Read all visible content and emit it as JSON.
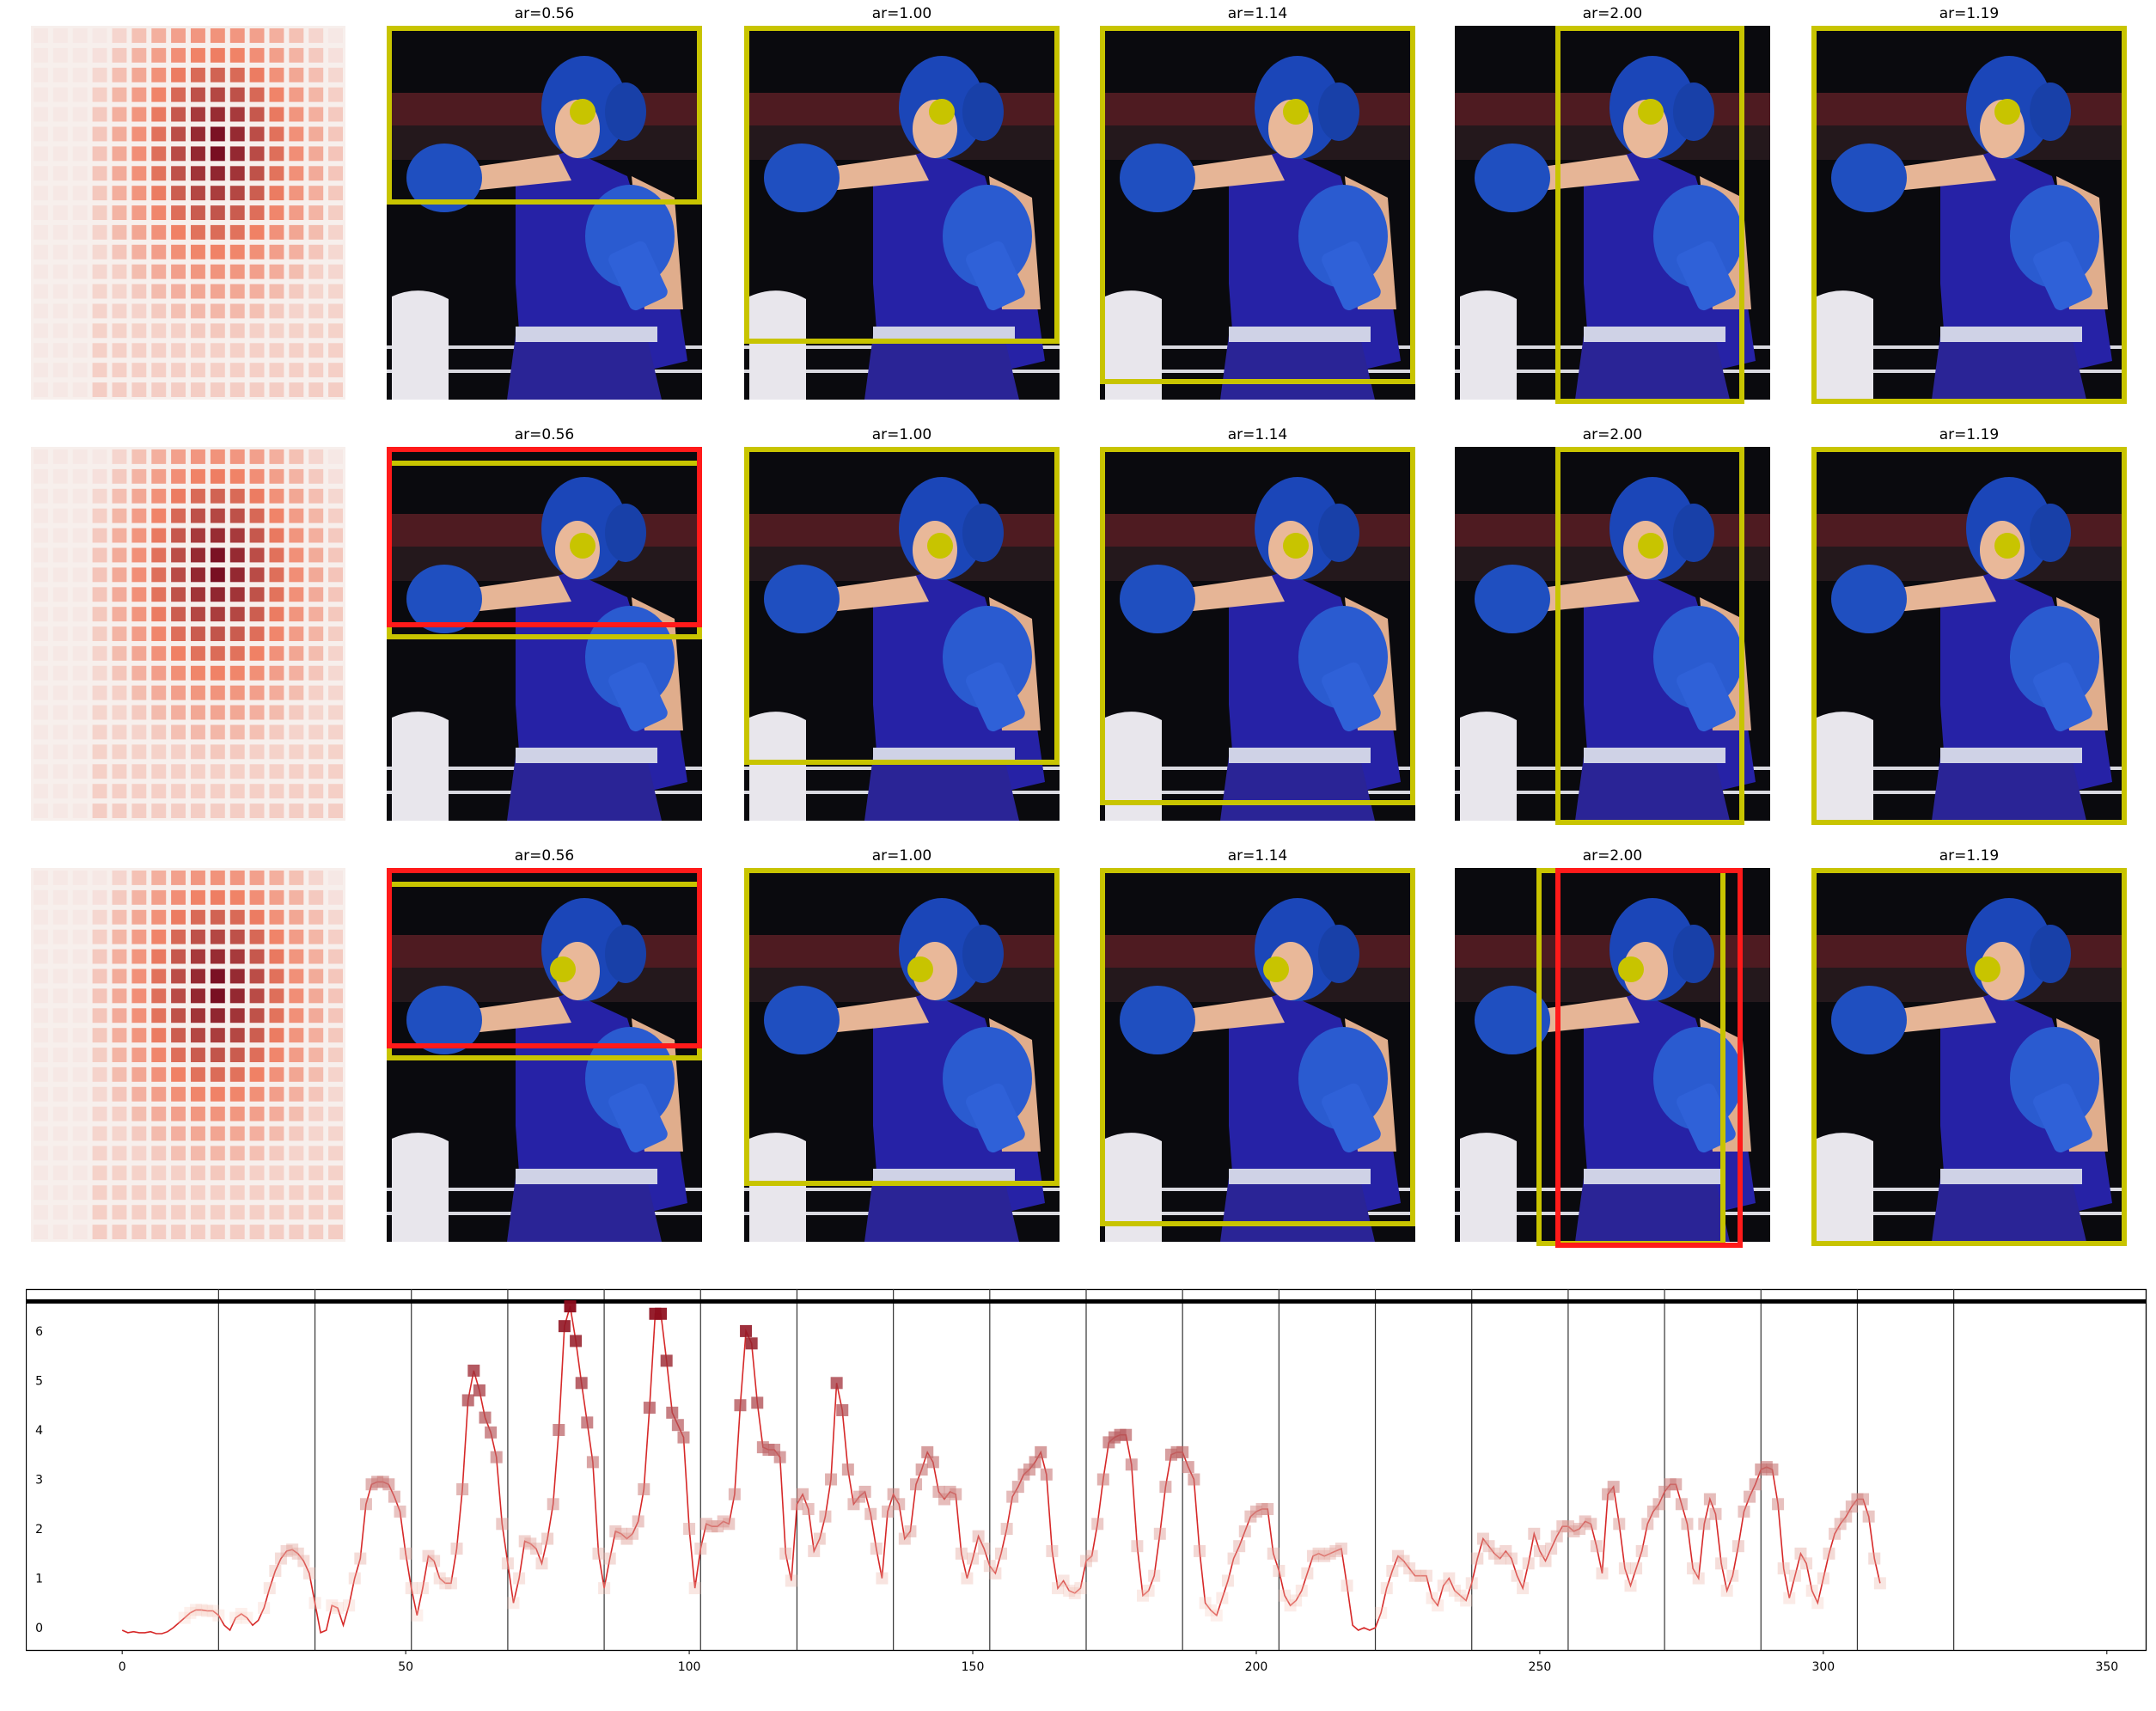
{
  "grid": {
    "rows": [
      {
        "panels": [
          {
            "title": "ar=0.56"
          },
          {
            "title": "ar=1.00"
          },
          {
            "title": "ar=1.14"
          },
          {
            "title": "ar=2.00"
          },
          {
            "title": "ar=1.19"
          }
        ]
      },
      {
        "panels": [
          {
            "title": "ar=0.56"
          },
          {
            "title": "ar=1.00"
          },
          {
            "title": "ar=1.14"
          },
          {
            "title": "ar=2.00"
          },
          {
            "title": "ar=1.19"
          }
        ]
      },
      {
        "panels": [
          {
            "title": "ar=0.56"
          },
          {
            "title": "ar=1.00"
          },
          {
            "title": "ar=1.14"
          },
          {
            "title": "ar=2.00"
          },
          {
            "title": "ar=1.19"
          }
        ]
      }
    ]
  },
  "colors": {
    "crop_box": "#c8c400",
    "previous_box": "#ff1a1a",
    "line": "#d62828",
    "threshold": "#000000",
    "marker_low": "#fcd2c2",
    "marker_high": "#8b0a1a"
  },
  "chart_data": {
    "type": "line",
    "title": "",
    "xlabel": "",
    "ylabel": "",
    "xlim": [
      -17,
      357
    ],
    "ylim": [
      -0.45,
      6.85
    ],
    "xticks": [
      "0",
      "50",
      "100",
      "150",
      "200",
      "250",
      "300",
      "350"
    ],
    "yticks": [
      "0",
      "1",
      "2",
      "3",
      "4",
      "5",
      "6"
    ],
    "threshold": 6.6,
    "vlines": [
      17,
      34,
      51,
      68,
      85,
      102,
      119,
      136,
      153,
      170,
      187,
      204,
      221,
      238,
      255,
      272,
      289,
      306,
      323
    ],
    "series": [
      {
        "values": [
          -0.05,
          -0.1,
          -0.08,
          -0.1,
          -0.1,
          -0.08,
          -0.12,
          -0.12,
          -0.08,
          0.0,
          0.1,
          0.2,
          0.3,
          0.36,
          0.36,
          0.34,
          0.34,
          0.25,
          0.05,
          -0.05,
          0.2,
          0.28,
          0.2,
          0.05,
          0.15,
          0.4,
          0.8,
          1.15,
          1.4,
          1.55,
          1.58,
          1.5,
          1.35,
          1.1,
          0.5,
          -0.1,
          -0.05,
          0.45,
          0.4,
          0.05,
          0.45,
          1.0,
          1.4,
          2.5,
          2.9,
          2.95,
          2.95,
          2.9,
          2.65,
          2.35,
          1.5,
          0.8,
          0.25,
          0.8,
          1.45,
          1.35,
          1.0,
          0.9,
          0.9,
          1.6,
          2.8,
          4.6,
          5.2,
          4.8,
          4.25,
          3.95,
          3.45,
          2.1,
          1.3,
          0.5,
          1.0,
          1.75,
          1.7,
          1.6,
          1.3,
          1.8,
          2.5,
          4.0,
          6.1,
          6.5,
          5.8,
          4.95,
          4.15,
          3.35,
          1.5,
          0.8,
          1.4,
          1.95,
          1.9,
          1.8,
          1.9,
          2.15,
          2.8,
          4.45,
          6.35,
          6.35,
          5.4,
          4.35,
          4.1,
          3.85,
          2.0,
          0.8,
          1.6,
          2.1,
          2.05,
          2.05,
          2.15,
          2.1,
          2.7,
          4.5,
          6.0,
          5.75,
          4.55,
          3.65,
          3.6,
          3.6,
          3.45,
          1.5,
          0.95,
          2.5,
          2.7,
          2.4,
          1.55,
          1.8,
          2.25,
          3.0,
          4.95,
          4.4,
          3.2,
          2.5,
          2.65,
          2.75,
          2.3,
          1.6,
          1.0,
          2.35,
          2.7,
          2.5,
          1.8,
          1.95,
          2.9,
          3.2,
          3.55,
          3.35,
          2.75,
          2.6,
          2.75,
          2.7,
          1.5,
          1.0,
          1.4,
          1.85,
          1.6,
          1.25,
          1.1,
          1.5,
          2.0,
          2.65,
          2.85,
          3.1,
          3.2,
          3.35,
          3.55,
          3.1,
          1.55,
          0.8,
          0.95,
          0.75,
          0.7,
          0.8,
          1.35,
          1.45,
          2.1,
          3.0,
          3.75,
          3.85,
          3.9,
          3.9,
          3.3,
          1.65,
          0.65,
          0.75,
          1.05,
          1.9,
          2.85,
          3.5,
          3.55,
          3.55,
          3.25,
          3.0,
          1.55,
          0.5,
          0.35,
          0.25,
          0.6,
          0.95,
          1.4,
          1.65,
          1.95,
          2.25,
          2.35,
          2.4,
          2.4,
          1.5,
          1.15,
          0.65,
          0.45,
          0.55,
          0.75,
          1.1,
          1.45,
          1.5,
          1.45,
          1.5,
          1.55,
          1.6,
          0.85,
          0.05,
          -0.05,
          0.0,
          -0.05,
          0.0,
          0.3,
          0.8,
          1.15,
          1.45,
          1.35,
          1.2,
          1.05,
          1.05,
          1.05,
          0.6,
          0.45,
          0.85,
          1.0,
          0.75,
          0.65,
          0.55,
          0.9,
          1.4,
          1.8,
          1.65,
          1.5,
          1.4,
          1.55,
          1.4,
          1.05,
          0.8,
          1.3,
          1.9,
          1.55,
          1.35,
          1.6,
          1.85,
          2.05,
          2.05,
          1.95,
          2.0,
          2.15,
          2.1,
          1.65,
          1.1,
          2.7,
          2.85,
          2.1,
          1.2,
          0.85,
          1.2,
          1.55,
          2.1,
          2.35,
          2.5,
          2.75,
          2.9,
          2.9,
          2.5,
          2.1,
          1.2,
          1.0,
          2.1,
          2.6,
          2.3,
          1.3,
          0.75,
          1.05,
          1.65,
          2.35,
          2.65,
          2.9,
          3.2,
          3.25,
          3.2,
          2.5,
          1.2,
          0.6,
          1.05,
          1.5,
          1.3,
          0.75,
          0.5,
          1.0,
          1.5,
          1.9,
          2.1,
          2.25,
          2.45,
          2.6,
          2.6,
          2.25,
          1.4,
          0.9
        ]
      }
    ]
  }
}
